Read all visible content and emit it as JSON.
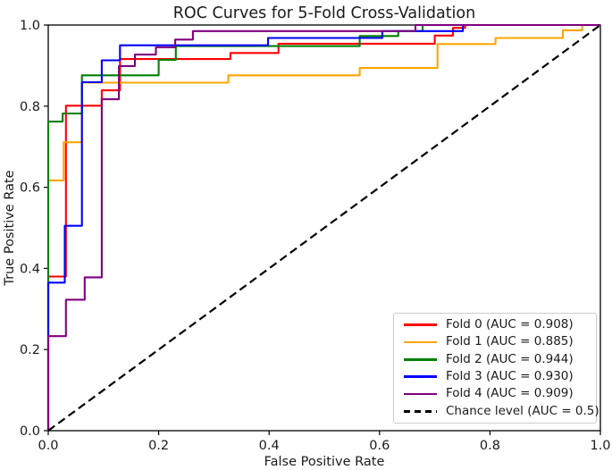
{
  "chart_data": {
    "type": "line",
    "subtype": "roc-step-curves",
    "title": "ROC Curves for 5-Fold Cross-Validation",
    "xlabel": "False Positive Rate",
    "ylabel": "True Positive Rate",
    "xlim": [
      0.0,
      1.0
    ],
    "ylim": [
      0.0,
      1.0
    ],
    "x_ticks": [
      0.0,
      0.2,
      0.4,
      0.6,
      0.8,
      1.0
    ],
    "y_ticks": [
      0.0,
      0.2,
      0.4,
      0.6,
      0.8,
      1.0
    ],
    "x_tick_labels": [
      "0.0",
      "0.2",
      "0.4",
      "0.6",
      "0.8",
      "1.0"
    ],
    "y_tick_labels": [
      "0.0",
      "0.2",
      "0.4",
      "0.6",
      "0.8",
      "1.0"
    ],
    "grid": false,
    "legend_position": "lower right",
    "background_color": "#ffffff",
    "axis_color": "#000000",
    "series": [
      {
        "name": "Fold 0 (AUC = 0.908)",
        "auc": 0.908,
        "color": "#ff0000",
        "dashed": false,
        "points": [
          [
            0,
            0
          ],
          [
            0,
            0.38
          ],
          [
            0.032,
            0.38
          ],
          [
            0.032,
            0.801
          ],
          [
            0.097,
            0.801
          ],
          [
            0.097,
            0.839
          ],
          [
            0.13,
            0.839
          ],
          [
            0.13,
            0.916
          ],
          [
            0.33,
            0.916
          ],
          [
            0.33,
            0.931
          ],
          [
            0.417,
            0.931
          ],
          [
            0.417,
            0.954
          ],
          [
            0.7,
            0.954
          ],
          [
            0.7,
            0.974
          ],
          [
            0.733,
            0.974
          ],
          [
            0.733,
            0.993
          ],
          [
            0.755,
            0.993
          ],
          [
            0.755,
            1.0
          ],
          [
            1.0,
            1.0
          ]
        ]
      },
      {
        "name": "Fold 1 (AUC = 0.885)",
        "auc": 0.885,
        "color": "#ffa500",
        "dashed": false,
        "points": [
          [
            0,
            0
          ],
          [
            0,
            0.617
          ],
          [
            0.028,
            0.617
          ],
          [
            0.028,
            0.711
          ],
          [
            0.061,
            0.711
          ],
          [
            0.061,
            0.858
          ],
          [
            0.326,
            0.858
          ],
          [
            0.326,
            0.876
          ],
          [
            0.564,
            0.876
          ],
          [
            0.564,
            0.894
          ],
          [
            0.705,
            0.894
          ],
          [
            0.705,
            0.953
          ],
          [
            0.81,
            0.953
          ],
          [
            0.81,
            0.968
          ],
          [
            0.932,
            0.968
          ],
          [
            0.932,
            0.987
          ],
          [
            0.967,
            0.987
          ],
          [
            0.967,
            1.0
          ],
          [
            1.0,
            1.0
          ]
        ]
      },
      {
        "name": "Fold 2 (AUC = 0.944)",
        "auc": 0.944,
        "color": "#008000",
        "dashed": false,
        "points": [
          [
            0,
            0
          ],
          [
            0,
            0.762
          ],
          [
            0.026,
            0.762
          ],
          [
            0.026,
            0.782
          ],
          [
            0.061,
            0.782
          ],
          [
            0.061,
            0.876
          ],
          [
            0.2,
            0.876
          ],
          [
            0.2,
            0.914
          ],
          [
            0.231,
            0.914
          ],
          [
            0.231,
            0.948
          ],
          [
            0.564,
            0.948
          ],
          [
            0.564,
            0.973
          ],
          [
            0.634,
            0.973
          ],
          [
            0.634,
            0.985
          ],
          [
            0.678,
            0.985
          ],
          [
            0.678,
            1.0
          ],
          [
            1.0,
            1.0
          ]
        ]
      },
      {
        "name": "Fold 3 (AUC = 0.930)",
        "auc": 0.93,
        "color": "#0000ff",
        "dashed": false,
        "points": [
          [
            0,
            0
          ],
          [
            0,
            0.365
          ],
          [
            0.03,
            0.365
          ],
          [
            0.03,
            0.505
          ],
          [
            0.061,
            0.505
          ],
          [
            0.061,
            0.859
          ],
          [
            0.097,
            0.859
          ],
          [
            0.097,
            0.913
          ],
          [
            0.13,
            0.913
          ],
          [
            0.13,
            0.95
          ],
          [
            0.398,
            0.95
          ],
          [
            0.398,
            0.968
          ],
          [
            0.605,
            0.968
          ],
          [
            0.605,
            0.985
          ],
          [
            0.751,
            0.985
          ],
          [
            0.751,
            1.0
          ],
          [
            1.0,
            1.0
          ]
        ]
      },
      {
        "name": "Fold 4 (AUC = 0.909)",
        "auc": 0.909,
        "color": "#800080",
        "dashed": false,
        "points": [
          [
            0,
            0
          ],
          [
            0,
            0.233
          ],
          [
            0.032,
            0.233
          ],
          [
            0.032,
            0.323
          ],
          [
            0.066,
            0.323
          ],
          [
            0.066,
            0.378
          ],
          [
            0.097,
            0.378
          ],
          [
            0.097,
            0.817
          ],
          [
            0.128,
            0.817
          ],
          [
            0.128,
            0.899
          ],
          [
            0.157,
            0.899
          ],
          [
            0.157,
            0.927
          ],
          [
            0.195,
            0.927
          ],
          [
            0.195,
            0.945
          ],
          [
            0.23,
            0.945
          ],
          [
            0.23,
            0.964
          ],
          [
            0.262,
            0.964
          ],
          [
            0.262,
            0.985
          ],
          [
            0.665,
            0.985
          ],
          [
            0.665,
            1.0
          ],
          [
            1.0,
            1.0
          ]
        ]
      },
      {
        "name": "Chance level (AUC = 0.5)",
        "auc": 0.5,
        "color": "#000000",
        "dashed": true,
        "points": [
          [
            0,
            0
          ],
          [
            1.0,
            1.0
          ]
        ]
      }
    ]
  }
}
